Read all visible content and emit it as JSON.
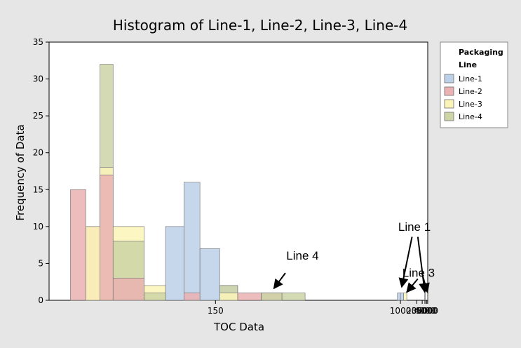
{
  "chart_data": {
    "type": "bar",
    "subtype": "overlaid-histogram",
    "title": "Histogram of Line-1, Line-2, Line-3, Line-4",
    "xlabel": "TOC Data",
    "ylabel": "Frequency of Data",
    "xaxis": {
      "scale": "reciprocal",
      "ticks": [
        150,
        1000,
        2000,
        3000,
        4000,
        5000,
        6000
      ],
      "range": [
        85,
        6100
      ]
    },
    "ylim": [
      0,
      35
    ],
    "yticks": [
      0,
      5,
      10,
      15,
      20,
      25,
      30,
      35
    ],
    "grid": false,
    "legend": {
      "title_lines": [
        "Packaging",
        "Line"
      ],
      "placement": "right"
    },
    "series": [
      {
        "name": "Line-1",
        "color": "#bcd0e8",
        "bins": [
          {
            "x0": 122,
            "x1": 131,
            "count": 10
          },
          {
            "x0": 131,
            "x1": 140,
            "count": 16
          },
          {
            "x0": 140,
            "x1": 153,
            "count": 7
          },
          {
            "x0": 153,
            "x1": 167,
            "count": 2
          },
          {
            "x0": 915,
            "x1": 1000,
            "count": 1
          },
          {
            "x0": 1000,
            "x1": 1110,
            "count": 1
          },
          {
            "x0": 3880,
            "x1": 4020,
            "count": 1
          }
        ]
      },
      {
        "name": "Line-2",
        "color": "#eab2b2",
        "bins": [
          {
            "x0": 90,
            "x1": 94,
            "count": 15
          },
          {
            "x0": 94,
            "x1": 98,
            "count": 10
          },
          {
            "x0": 98,
            "x1": 102,
            "count": 17
          },
          {
            "x0": 102,
            "x1": 113,
            "count": 3
          },
          {
            "x0": 131,
            "x1": 140,
            "count": 1
          },
          {
            "x0": 167,
            "x1": 190,
            "count": 1
          },
          {
            "x0": 190,
            "x1": 216,
            "count": 1
          }
        ]
      },
      {
        "name": "Line-3",
        "color": "#fbf4b8",
        "bins": [
          {
            "x0": 94,
            "x1": 98,
            "count": 10
          },
          {
            "x0": 98,
            "x1": 102,
            "count": 18
          },
          {
            "x0": 102,
            "x1": 113,
            "count": 10
          },
          {
            "x0": 113,
            "x1": 122,
            "count": 2
          },
          {
            "x0": 153,
            "x1": 167,
            "count": 1
          },
          {
            "x0": 1110,
            "x1": 1240,
            "count": 1
          },
          {
            "x0": 5800,
            "x1": 6050,
            "count": 1
          }
        ]
      },
      {
        "name": "Line-4",
        "color": "#cdd4a6",
        "bins": [
          {
            "x0": 98,
            "x1": 102,
            "count": 32
          },
          {
            "x0": 102,
            "x1": 113,
            "count": 8
          },
          {
            "x0": 113,
            "x1": 122,
            "count": 1
          },
          {
            "x0": 153,
            "x1": 167,
            "count": 2
          },
          {
            "x0": 190,
            "x1": 216,
            "count": 1
          },
          {
            "x0": 216,
            "x1": 255,
            "count": 1
          }
        ]
      }
    ],
    "annotations": [
      {
        "label": "Line 1",
        "x": 1750,
        "y": 9.4
      },
      {
        "label": "Line 3",
        "x": 2250,
        "y": 3.2
      },
      {
        "label": "Line 4",
        "x": 250,
        "y": 5.5
      }
    ],
    "arrows": [
      {
        "from": [
          1550,
          8.6
        ],
        "to": [
          1040,
          1.8
        ]
      },
      {
        "from": [
          2140,
          8.6
        ],
        "to": [
          3950,
          1.1
        ]
      },
      {
        "from": [
          2130,
          2.9
        ],
        "to": [
          1240,
          1.1
        ]
      },
      {
        "from": [
          2950,
          3.6
        ],
        "to": [
          5750,
          1.1
        ]
      },
      {
        "from": [
          221,
          3.7
        ],
        "to": [
          205,
          1.6
        ]
      }
    ]
  }
}
